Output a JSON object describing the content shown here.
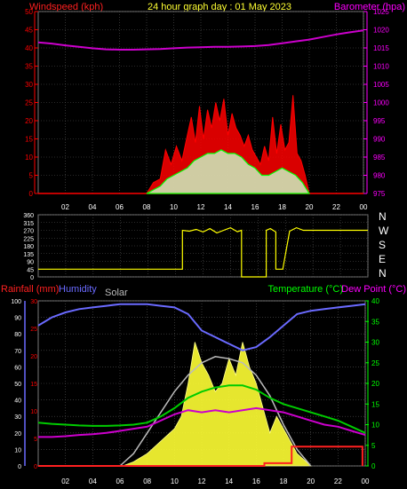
{
  "colors": {
    "wind": "#ff2020",
    "gust": "#ff0000",
    "wind_avg": "#00ff00",
    "barometer": "#cc00cc",
    "direction": "#ffff00",
    "rain": "#ff2020",
    "humidity": "#6a6aff",
    "solar": "#ffff33",
    "solar_max": "#bbbbbb",
    "temperature": "#00cc00",
    "dewpoint": "#cc00cc",
    "grid": "#555555",
    "axis_red": "#ff0000",
    "axis_magenta": "#ff00ff",
    "axis_green": "#00ff00",
    "axis_blue": "#6a6aff"
  },
  "top": {
    "title": "24 hour graph day : 01 May 2023",
    "left_label": "Windspeed (kph)",
    "right_label": "Barometer (hpa)"
  },
  "middle": {
    "compass": [
      "N",
      "W",
      "S",
      "E",
      "N"
    ]
  },
  "bottom": {
    "rain_label": "Rainfall (mm)",
    "humidity_label": "Humidity",
    "solar_label": "Solar",
    "temp_label": "Temperature (°C)",
    "dew_label": "Dew Point (°C)"
  },
  "chart_data": [
    {
      "type": "line",
      "title": "24 hour graph day : 01 May 2023",
      "x_tick_labels": [
        "02",
        "04",
        "06",
        "08",
        "10",
        "12",
        "14",
        "16",
        "18",
        "20",
        "22",
        "00"
      ],
      "xlim_hours": [
        0,
        24
      ],
      "left_axis": {
        "label": "Windspeed (kph)",
        "ylim": [
          0,
          50
        ],
        "ticks": [
          0,
          5,
          10,
          15,
          20,
          25,
          30,
          35,
          40,
          45,
          50
        ]
      },
      "right_axis": {
        "label": "Barometer (hpa)",
        "ylim": [
          975,
          1025
        ],
        "ticks": [
          975,
          980,
          985,
          990,
          995,
          1000,
          1005,
          1010,
          1015,
          1020,
          1025
        ]
      },
      "series": [
        {
          "name": "Barometer (hpa)",
          "axis": "right",
          "x": [
            0,
            1,
            2,
            3,
            4,
            5,
            6,
            7,
            8,
            9,
            10,
            11,
            12,
            13,
            14,
            15,
            16,
            17,
            18,
            19,
            20,
            21,
            22,
            23,
            24
          ],
          "values": [
            1016.5,
            1016.2,
            1015.7,
            1015.3,
            1014.9,
            1014.6,
            1014.5,
            1014.5,
            1014.6,
            1014.7,
            1014.9,
            1015.1,
            1015.2,
            1015.3,
            1015.3,
            1015.4,
            1015.5,
            1015.8,
            1016.3,
            1016.8,
            1017.3,
            1018.0,
            1018.7,
            1019.3,
            1019.8
          ]
        },
        {
          "name": "Wind Gust",
          "axis": "left",
          "x": [
            8.0,
            8.5,
            9.0,
            9.4,
            9.8,
            10.2,
            10.6,
            11.0,
            11.3,
            11.6,
            11.9,
            12.2,
            12.5,
            12.8,
            13.1,
            13.4,
            13.7,
            14.0,
            14.3,
            14.6,
            14.9,
            15.2,
            15.5,
            15.8,
            16.1,
            16.4,
            16.7,
            17.0,
            17.3,
            17.6,
            17.9,
            18.2,
            18.5,
            18.8,
            19.1,
            19.4,
            19.7,
            20.0
          ],
          "values": [
            0,
            3,
            4,
            12,
            8,
            13,
            9,
            16,
            21,
            14,
            24,
            15,
            23,
            18,
            25,
            20,
            26,
            16,
            22,
            18,
            16,
            13,
            16,
            12,
            10,
            8,
            13,
            9,
            21,
            11,
            19,
            12,
            14,
            27,
            11,
            9,
            5,
            0
          ]
        },
        {
          "name": "Wind Speed",
          "axis": "left",
          "x": [
            8.0,
            8.5,
            9.0,
            9.5,
            10.0,
            10.5,
            11.0,
            11.5,
            12.0,
            12.5,
            13.0,
            13.5,
            14.0,
            14.5,
            15.0,
            15.5,
            16.0,
            16.5,
            17.0,
            17.5,
            18.0,
            18.5,
            19.0,
            19.5,
            20.0
          ],
          "values": [
            0,
            1,
            2,
            4,
            5,
            6,
            7,
            9,
            10,
            11,
            11,
            12,
            11,
            11,
            10,
            8,
            7,
            5,
            5,
            6,
            7,
            6,
            5,
            3,
            0
          ]
        }
      ]
    },
    {
      "type": "line",
      "title": "",
      "x_tick_labels": [],
      "xlim_hours": [
        0,
        24
      ],
      "left_axis": {
        "label": "",
        "ylim": [
          0,
          360
        ],
        "ticks": [
          0,
          45,
          90,
          135,
          180,
          225,
          270,
          315,
          360
        ]
      },
      "right_axis_labels": [
        "N",
        "W",
        "S",
        "E",
        "N"
      ],
      "series": [
        {
          "name": "Wind Direction",
          "x": [
            0,
            10.5,
            10.5,
            11.0,
            11.5,
            12.0,
            12.5,
            13.0,
            13.5,
            14.0,
            14.5,
            14.8,
            14.8,
            15.0,
            15.5,
            16.0,
            16.6,
            16.6,
            16.9,
            17.3,
            17.3,
            17.8,
            18.3,
            18.8,
            19.3,
            20.0,
            24
          ],
          "values": [
            45,
            45,
            270,
            265,
            275,
            260,
            280,
            255,
            270,
            285,
            262,
            270,
            0,
            0,
            0,
            0,
            0,
            270,
            280,
            260,
            45,
            45,
            265,
            285,
            270,
            270,
            270
          ]
        }
      ]
    },
    {
      "type": "line",
      "title": "",
      "x_tick_labels": [
        "02",
        "04",
        "06",
        "08",
        "10",
        "12",
        "14",
        "16",
        "18",
        "20",
        "22",
        "00"
      ],
      "xlim_hours": [
        0,
        24
      ],
      "left_axis": {
        "label": "Rainfall (mm) / Humidity",
        "ylim": [
          0,
          100
        ],
        "ticks": [
          0,
          10,
          20,
          30,
          40,
          50,
          60,
          70,
          80,
          90,
          100
        ],
        "rain_ticks": [
          0,
          5,
          10,
          15,
          20,
          25,
          30
        ]
      },
      "right_axis": {
        "label": "Temperature (°C) / Dew Point (°C)",
        "ylim": [
          0,
          40
        ],
        "ticks": [
          0,
          5,
          10,
          15,
          20,
          25,
          30,
          35,
          40
        ]
      },
      "series": [
        {
          "name": "Humidity",
          "axis": "left",
          "x": [
            0,
            1,
            2,
            3,
            4,
            5,
            6,
            7,
            8,
            9,
            10,
            11,
            12,
            13,
            14,
            15,
            16,
            17,
            18,
            19,
            20,
            21,
            22,
            23,
            24
          ],
          "values": [
            85,
            90,
            93,
            95,
            96,
            97,
            98,
            98,
            98,
            97,
            96,
            92,
            82,
            78,
            74,
            70,
            72,
            78,
            85,
            92,
            94,
            95,
            96,
            97,
            98
          ]
        },
        {
          "name": "Temperature (°C)",
          "axis": "right",
          "x": [
            0,
            1,
            2,
            3,
            4,
            5,
            6,
            7,
            8,
            9,
            10,
            11,
            12,
            13,
            14,
            15,
            16,
            17,
            18,
            19,
            20,
            21,
            22,
            23,
            24
          ],
          "values": [
            10.5,
            10.2,
            10.0,
            9.8,
            9.7,
            9.7,
            9.8,
            10.0,
            10.5,
            12.0,
            14.0,
            16.5,
            18.0,
            19.0,
            19.5,
            19.5,
            18.5,
            16.5,
            15.0,
            14.0,
            13.0,
            12.0,
            11.0,
            9.5,
            8.0
          ]
        },
        {
          "name": "Dew Point (°C)",
          "axis": "right",
          "x": [
            0,
            1,
            2,
            3,
            4,
            5,
            6,
            7,
            8,
            9,
            10,
            11,
            12,
            13,
            14,
            15,
            16,
            17,
            18,
            19,
            20,
            21,
            22,
            23,
            24
          ],
          "values": [
            7.0,
            7.0,
            7.2,
            7.5,
            7.7,
            8.0,
            8.5,
            9.0,
            9.5,
            11.0,
            12.5,
            13.5,
            13.0,
            13.5,
            13.0,
            13.5,
            14.0,
            13.5,
            13.0,
            12.0,
            11.0,
            10.0,
            9.5,
            8.5,
            7.5
          ]
        },
        {
          "name": "Solar",
          "axis": "right",
          "x": [
            6.2,
            7,
            8,
            9,
            10,
            10.5,
            11,
            11.5,
            12,
            12.5,
            13,
            13.5,
            14,
            14.5,
            15,
            15.5,
            16,
            16.5,
            17,
            17.5,
            18,
            18.5,
            19,
            20
          ],
          "values": [
            0,
            1,
            3,
            6,
            9,
            12,
            20,
            30,
            25,
            22,
            18,
            20,
            26,
            22,
            30,
            24,
            20,
            14,
            8,
            12,
            9,
            6,
            3,
            0
          ]
        },
        {
          "name": "Solar Max",
          "axis": "right",
          "x": [
            6,
            7,
            8,
            9,
            10,
            11,
            12,
            13,
            14,
            15,
            16,
            17,
            18,
            19,
            20
          ],
          "values": [
            0,
            3,
            8,
            13,
            18,
            22,
            25,
            26.5,
            26,
            25,
            22,
            17,
            10,
            4,
            0
          ]
        },
        {
          "name": "Rainfall (mm)",
          "axis": "left_rain",
          "x": [
            0,
            16.6,
            16.6,
            18.6,
            18.6,
            23.8,
            23.8
          ],
          "values": [
            0,
            0,
            0.5,
            0.5,
            3.5,
            3.5,
            0
          ]
        }
      ]
    }
  ]
}
